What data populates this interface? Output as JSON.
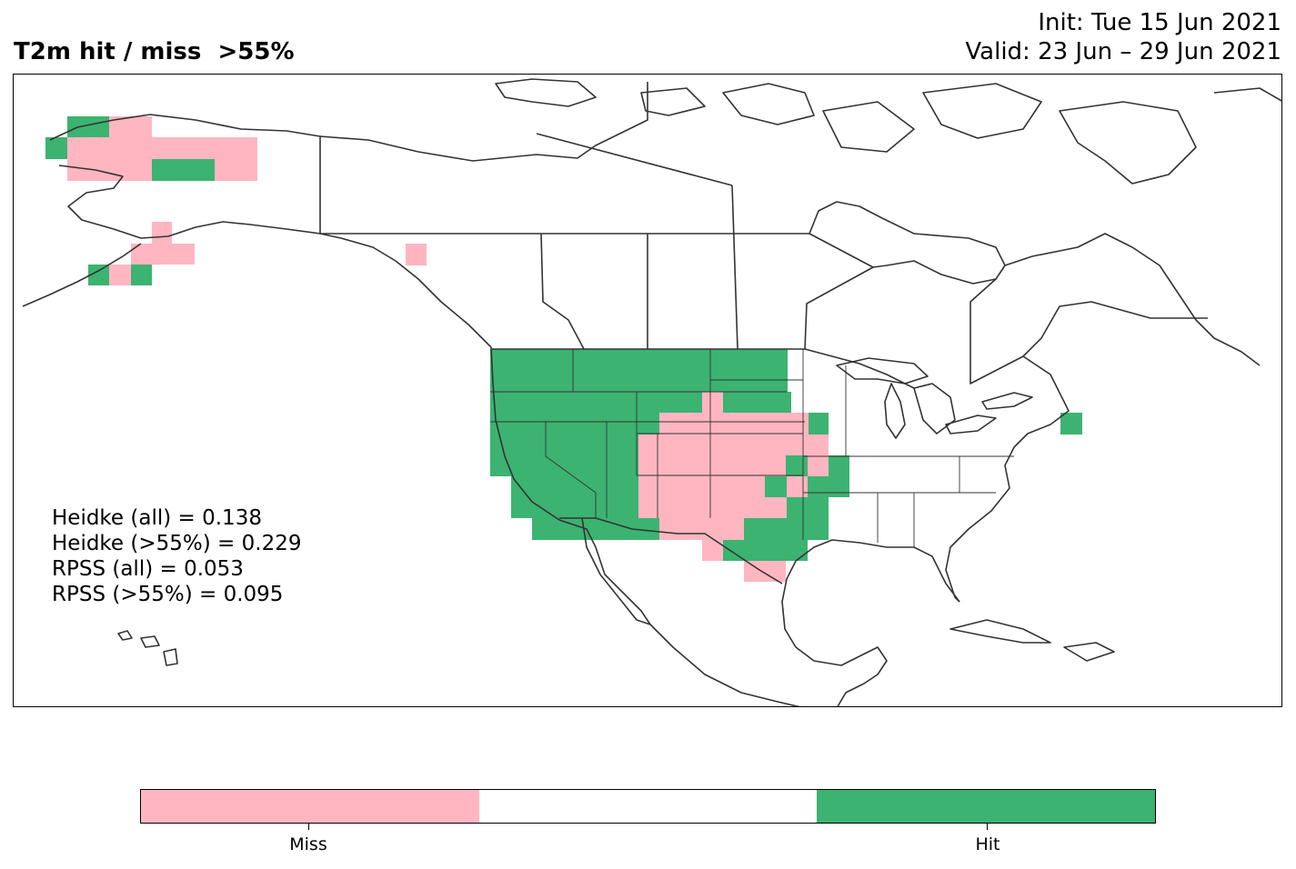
{
  "header": {
    "title": "T2m hit / miss  >55%",
    "init": "Init: Tue 15 Jun 2021",
    "valid": "Valid: 23 Jun – 29 Jun 2021"
  },
  "stats": [
    "Heidke (all) = 0.138",
    "Heidke (>55%) = 0.229",
    "RPSS (all) = 0.053",
    "RPSS (>55%) = 0.095"
  ],
  "colors": {
    "miss": "#ffb6c1",
    "neutral": "#ffffff",
    "hit": "#3cb371",
    "coast": "#333333"
  },
  "legend": {
    "segments": [
      "miss",
      "neutral",
      "hit"
    ],
    "labels": [
      "Miss",
      "Hit"
    ]
  },
  "map": {
    "region": "North America",
    "category_legend": {
      "miss": "Miss",
      "hit": "Hit"
    }
  }
}
